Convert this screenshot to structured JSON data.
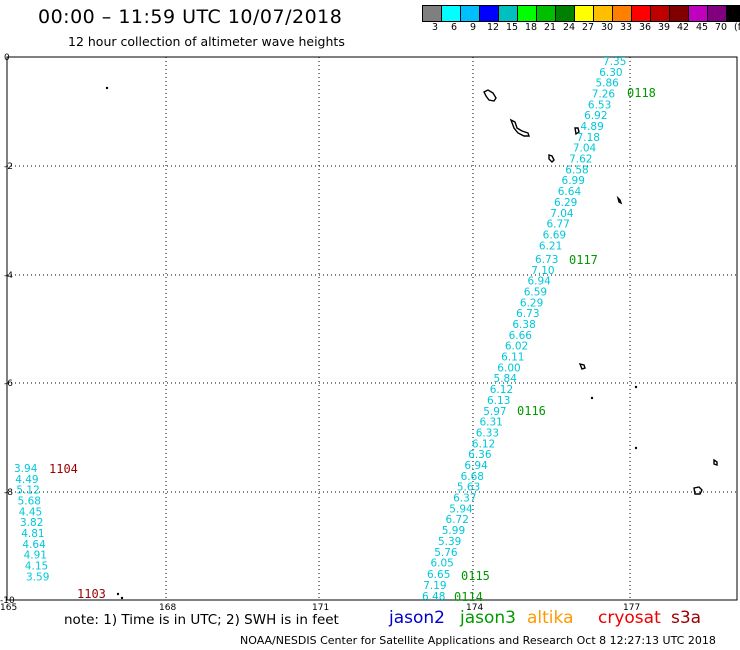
{
  "header": {
    "title": "00:00 – 11:59 UTC 10/07/2018",
    "subtitle": "12 hour collection of altimeter wave heights"
  },
  "scale": {
    "colors": [
      "#7f7f7f",
      "#00ffff",
      "#00bfff",
      "#0000ff",
      "#00bfbf",
      "#00ff00",
      "#00bf00",
      "#008000",
      "#ffff00",
      "#ffbf00",
      "#ff8000",
      "#ff0000",
      "#bf0000",
      "#800000",
      "#bf00bf",
      "#800080",
      "#000000"
    ],
    "labels": [
      "3",
      "6",
      "9",
      "12",
      "15",
      "18",
      "21",
      "24",
      "27",
      "30",
      "33",
      "36",
      "39",
      "42",
      "45",
      "70",
      "(ft)"
    ]
  },
  "map": {
    "lat_ticks": [
      "0",
      "-2",
      "-4",
      "-6",
      "-8",
      "-10"
    ],
    "lon_ticks": [
      "165",
      "168",
      "171",
      "174",
      "177"
    ]
  },
  "tracks": [
    {
      "id": "0118",
      "values": [
        "7.35",
        "6.30",
        "5.86",
        "7.26",
        "6.53",
        "6.92",
        "4.89",
        "7.18",
        "7.04",
        "7.62",
        "6.58",
        "6.99",
        "6.64",
        "6.29",
        "7.04",
        "6.77",
        "6.69",
        "6.21"
      ]
    },
    {
      "id": "0117",
      "values": [
        "6.73",
        "7.10",
        "6.94",
        "6.59",
        "6.29",
        "6.73",
        "6.38",
        "6.66",
        "6.02",
        "6.11",
        "6.00",
        "5.84",
        "6.12"
      ]
    },
    {
      "id": "0116",
      "values": [
        "6.13",
        "5.97",
        "6.31",
        "6.33",
        "6.12",
        "6.36",
        "6.94",
        "6.68",
        "5.63",
        "6.37",
        "5.94",
        "6.72",
        "5.99",
        "5.39",
        "5.76",
        "6.05"
      ]
    },
    {
      "id": "0115",
      "values": [
        "6.65",
        "7.19"
      ]
    },
    {
      "id": "0114",
      "values": [
        "6.48"
      ]
    },
    {
      "id": "1104",
      "values": [
        "3.94",
        "4.49",
        "5.12",
        "5.68",
        "4.45",
        "3.82",
        "4.81",
        "4.64",
        "4.91",
        "4.15",
        "3.59"
      ]
    },
    {
      "id": "1103",
      "values": []
    }
  ],
  "satellites": [
    {
      "name": "jason2",
      "color": "#0000cc"
    },
    {
      "name": "jason3",
      "color": "#009900"
    },
    {
      "name": "altika",
      "color": "#ff9900"
    },
    {
      "name": "cryosat",
      "color": "#ee0000"
    },
    {
      "name": "s3a",
      "color": "#990000"
    }
  ],
  "footer": {
    "note": "note:  1) Time is in UTC;  2) SWH is in feet",
    "credit": "NOAA/NESDIS Center for Satellite Applications and Research    Oct  8 12:27:13 UTC 2018"
  }
}
